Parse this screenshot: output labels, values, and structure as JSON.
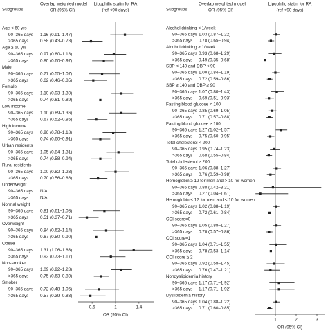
{
  "chart_data": [
    {
      "type": "forest",
      "col_subgroups": "Subgroups",
      "col_model": [
        "Overlap weighted model",
        "OR (95% CI)"
      ],
      "col_plot": [
        "Lipophilic statin  for RA",
        "(ref <90 days)"
      ],
      "xlabel": "OR (95% CI)",
      "xlim": [
        0.35,
        1.65
      ],
      "xticks": [
        0.6,
        1,
        1.4
      ],
      "reference_line": 1,
      "color": "#222222",
      "groups": [
        {
          "name": "Age < 60 yrs",
          "rows": [
            {
              "label": "90–365 days",
              "value_label": "1.16 (0.91–1.47)",
              "value": 1.16,
              "low": 0.91,
              "high": 1.47
            },
            {
              "label": ">365 days",
              "value_label": "0.58 (0.43–0.78)",
              "value": 0.58,
              "low": 0.43,
              "high": 0.78
            }
          ]
        },
        {
          "name": "Age ≥ 60 yrs",
          "rows": [
            {
              "label": "90–365 days",
              "value_label": "0.97 (0.80–1.18)",
              "value": 0.97,
              "low": 0.8,
              "high": 1.18
            },
            {
              "label": ">365 days",
              "value_label": "0.80 (0.60–0.97)",
              "value": 0.8,
              "low": 0.6,
              "high": 0.97
            }
          ]
        },
        {
          "name": "Male",
          "rows": [
            {
              "label": "90–365 days",
              "value_label": "0.77 (0.55–1.07)",
              "value": 0.77,
              "low": 0.55,
              "high": 1.07
            },
            {
              "label": ">365 days",
              "value_label": "0.62 (0.46–0.85)",
              "value": 0.62,
              "low": 0.46,
              "high": 0.85
            }
          ]
        },
        {
          "name": "Female",
          "rows": [
            {
              "label": "90–365 days",
              "value_label": "1.10 (0.93–1.30)",
              "value": 1.1,
              "low": 0.93,
              "high": 1.3
            },
            {
              "label": ">365 days",
              "value_label": "0.74 (0.61–0.89)",
              "value": 0.74,
              "low": 0.61,
              "high": 0.89
            }
          ]
        },
        {
          "name": "Low income",
          "rows": [
            {
              "label": "90–365 days",
              "value_label": "1.10 (0.89–1.36)",
              "value": 1.1,
              "low": 0.89,
              "high": 1.36
            },
            {
              "label": ">365 days",
              "value_label": "0.67 (0.52–0.86)",
              "value": 0.67,
              "low": 0.52,
              "high": 0.86
            }
          ]
        },
        {
          "name": "High income",
          "rows": [
            {
              "label": "90–365 days",
              "value_label": "0.96 (0.78–1.18)",
              "value": 0.96,
              "low": 0.78,
              "high": 1.18
            },
            {
              "label": ">365 days",
              "value_label": "0.74 (0.60–0.91)",
              "value": 0.74,
              "low": 0.6,
              "high": 0.91
            }
          ]
        },
        {
          "name": "Urban residents",
          "rows": [
            {
              "label": "90–365 days",
              "value_label": "1.05 (0.84–1.31)",
              "value": 1.05,
              "low": 0.84,
              "high": 1.31
            },
            {
              "label": ">365 days",
              "value_label": "0.74 (0.58–0.94)",
              "value": 0.74,
              "low": 0.58,
              "high": 0.94
            }
          ]
        },
        {
          "name": "Rural residents",
          "rows": [
            {
              "label": "90–365 days",
              "value_label": "1.00 (0.82–1.23)",
              "value": 1.0,
              "low": 0.82,
              "high": 1.23
            },
            {
              "label": ">365 days",
              "value_label": "0.70 (0.56–0.86)",
              "value": 0.7,
              "low": 0.56,
              "high": 0.86
            }
          ]
        },
        {
          "name": "Underweight",
          "rows": [
            {
              "label": "90–365 days",
              "value_label": "N/A",
              "value": null,
              "low": null,
              "high": null
            },
            {
              "label": ">365 days",
              "value_label": "N/A",
              "value": null,
              "low": null,
              "high": null
            }
          ]
        },
        {
          "name": "Normal weight",
          "rows": [
            {
              "label": "90–365 days",
              "value_label": "0.81 (0.61–1.08)",
              "value": 0.81,
              "low": 0.61,
              "high": 1.08
            },
            {
              "label": ">365 days",
              "value_label": "0.51 (0.37–0.71)",
              "value": 0.51,
              "low": 0.37,
              "high": 0.71
            }
          ]
        },
        {
          "name": "Overweight",
          "rows": [
            {
              "label": "90–365 days",
              "value_label": "0.84 (0.62–1.14)",
              "value": 0.84,
              "low": 0.62,
              "high": 1.14
            },
            {
              "label": ">365 days",
              "value_label": "0.67 (0.50–0.90)",
              "value": 0.67,
              "low": 0.5,
              "high": 0.9
            }
          ]
        },
        {
          "name": "Obese",
          "rows": [
            {
              "label": "90–365 days",
              "value_label": "1.31 (1.06–1.63)",
              "value": 1.31,
              "low": 1.06,
              "high": 1.63
            },
            {
              "label": ">365 days",
              "value_label": "0.92 (0.73–1.17)",
              "value": 0.92,
              "low": 0.73,
              "high": 1.17
            }
          ]
        },
        {
          "name": "Non-smoker",
          "rows": [
            {
              "label": "90–365 days",
              "value_label": "1.09 (0.92–1.28)",
              "value": 1.09,
              "low": 0.92,
              "high": 1.28
            },
            {
              "label": ">365 days",
              "value_label": "0.75 (0.63–0.89)",
              "value": 0.75,
              "low": 0.63,
              "high": 0.89
            }
          ]
        },
        {
          "name": "Smoker",
          "rows": [
            {
              "label": "90–365 days",
              "value_label": "0.72 (0.48–1.06)",
              "value": 0.72,
              "low": 0.48,
              "high": 1.06
            },
            {
              "label": ">365 days",
              "value_label": "0.57 (0.39–0.83)",
              "value": 0.57,
              "low": 0.39,
              "high": 0.83
            }
          ]
        }
      ]
    },
    {
      "type": "forest",
      "col_subgroups": "Subgroups",
      "col_model": [
        "Overlap weighted model",
        "OR (95% CI)"
      ],
      "col_plot": [
        "Lipophilic statin  for RA",
        "(ref <90 days)"
      ],
      "xlabel": "OR (95% CI)",
      "xlim": [
        0,
        3.4
      ],
      "xticks": [
        1,
        2,
        3
      ],
      "reference_line": 1,
      "color": "#222222",
      "groups": [
        {
          "name": "Alcohol drinking < 1/week",
          "rows": [
            {
              "label": "90–365 days",
              "value_label": "1.03 (0.87–1.22)",
              "value": 1.03,
              "low": 0.87,
              "high": 1.22
            },
            {
              "label": ">365 days",
              "value_label": "0.78 (0.65–0.94)",
              "value": 0.78,
              "low": 0.65,
              "high": 0.94
            }
          ]
        },
        {
          "name": "Alcohol drinking ≥ 1/week",
          "rows": [
            {
              "label": "90–365 days",
              "value_label": "0.93 (0.68–1.29)",
              "value": 0.93,
              "low": 0.68,
              "high": 1.29
            },
            {
              "label": ">365 days",
              "value_label": "0.49 (0.35–0.68)",
              "value": 0.49,
              "low": 0.35,
              "high": 0.68
            }
          ]
        },
        {
          "name": "SBP < 140 and DBP < 90",
          "rows": [
            {
              "label": "90–365 days",
              "value_label": "1.00 (0.84–1.19)",
              "value": 1.0,
              "low": 0.84,
              "high": 1.19
            },
            {
              "label": ">365 days",
              "value_label": "0.72 (0.59–0.86)",
              "value": 0.72,
              "low": 0.59,
              "high": 0.86
            }
          ]
        },
        {
          "name": "SBP ≥ 140 and DBP ≥ 90",
          "rows": [
            {
              "label": "90–365 days",
              "value_label": "1.07 (0.80–1.43)",
              "value": 1.07,
              "low": 0.8,
              "high": 1.43
            },
            {
              "label": ">365 days",
              "value_label": "0.69 (0.51–0.93)",
              "value": 0.69,
              "low": 0.51,
              "high": 0.93
            }
          ]
        },
        {
          "name": "Fasting blood glucose < 100",
          "rows": [
            {
              "label": "90–365 days",
              "value_label": "0.85 (0.69–1.05)",
              "value": 0.85,
              "low": 0.69,
              "high": 1.05
            },
            {
              "label": ">365 days",
              "value_label": "0.71 (0.57–0.88)",
              "value": 0.71,
              "low": 0.57,
              "high": 0.88
            }
          ]
        },
        {
          "name": "Fasting blood glucose ≥ 100",
          "rows": [
            {
              "label": "90–365 days",
              "value_label": "1.27 (1.02–1.57)",
              "value": 1.27,
              "low": 1.02,
              "high": 1.57
            },
            {
              "label": ">365 days",
              "value_label": "0.75 (0.60–0.95)",
              "value": 0.75,
              "low": 0.6,
              "high": 0.95
            }
          ]
        },
        {
          "name": "Total cholesterol < 200",
          "rows": [
            {
              "label": "90–365 days",
              "value_label": "0.95 (0.74–1.23)",
              "value": 0.95,
              "low": 0.74,
              "high": 1.23
            },
            {
              "label": ">365 days",
              "value_label": "0.68 (0.55–0.84)",
              "value": 0.68,
              "low": 0.55,
              "high": 0.84
            }
          ]
        },
        {
          "name": "Total cholesterol ≥ 200",
          "rows": [
            {
              "label": "90–365 days",
              "value_label": "1.06 (0.88–1.27)",
              "value": 1.06,
              "low": 0.88,
              "high": 1.27
            },
            {
              "label": ">365 days",
              "value_label": "0.76 (0.59–0.98)",
              "value": 0.76,
              "low": 0.59,
              "high": 0.98
            }
          ]
        },
        {
          "name": "Hemoglobin ≥ 12 for men and > 10 for women",
          "rows": [
            {
              "label": "90–365 days",
              "value_label": "0.88 (0.42–3.21)",
              "value": 0.88,
              "low": 0.42,
              "high": 3.21
            },
            {
              "label": ">365 days",
              "value_label": "0.27 (0.04–1.61)",
              "value": 0.27,
              "low": 0.04,
              "high": 1.61
            }
          ]
        },
        {
          "name": "Hemoglobin < 12 for men and < 10 for women",
          "rows": [
            {
              "label": "90–365 days",
              "value_label": "1.02 (0.88–1.19)",
              "value": 1.02,
              "low": 0.88,
              "high": 1.19
            },
            {
              "label": ">365 days",
              "value_label": "0.72 (0.61–0.84)",
              "value": 0.72,
              "low": 0.61,
              "high": 0.84
            }
          ]
        },
        {
          "name": "CCI score=0",
          "rows": [
            {
              "label": "90–365 days",
              "value_label": "1.05 (0.88–1.27)",
              "value": 1.05,
              "low": 0.88,
              "high": 1.27
            },
            {
              "label": ">365 days",
              "value_label": "0.70 (0.57–0.86)",
              "value": 0.7,
              "low": 0.57,
              "high": 0.86
            }
          ]
        },
        {
          "name": "CCI score=1",
          "rows": [
            {
              "label": "90–365 days",
              "value_label": "1.04 (0.71–1.55)",
              "value": 1.04,
              "low": 0.71,
              "high": 1.55
            },
            {
              "label": ">365 days",
              "value_label": "0.78 (0.53–1.14)",
              "value": 0.78,
              "low": 0.53,
              "high": 1.14
            }
          ]
        },
        {
          "name": "CCI score ≥ 2",
          "rows": [
            {
              "label": "90–365 days",
              "value_label": "0.92 (0.58–1.45)",
              "value": 0.92,
              "low": 0.58,
              "high": 1.45
            },
            {
              "label": ">365 days",
              "value_label": "0.76 (0.47–1.21)",
              "value": 0.76,
              "low": 0.47,
              "high": 1.21
            }
          ]
        },
        {
          "name": "Nondyslipidemia history",
          "rows": [
            {
              "label": "90–365 days",
              "value_label": "1.17 (0.71–1.92)",
              "value": 1.17,
              "low": 0.71,
              "high": 1.92
            },
            {
              "label": ">365 days",
              "value_label": "1.17 (0.71–1.92)",
              "value": 1.17,
              "low": 0.71,
              "high": 1.92
            }
          ]
        },
        {
          "name": "Dyslipidemia history",
          "rows": [
            {
              "label": "90–365 days",
              "value_label": "1.04 (0.88–1.22)",
              "value": 1.04,
              "low": 0.88,
              "high": 1.22
            },
            {
              "label": ">365 days",
              "value_label": "0.71 (0.60–0.85)",
              "value": 0.71,
              "low": 0.6,
              "high": 0.85
            }
          ]
        }
      ]
    }
  ]
}
